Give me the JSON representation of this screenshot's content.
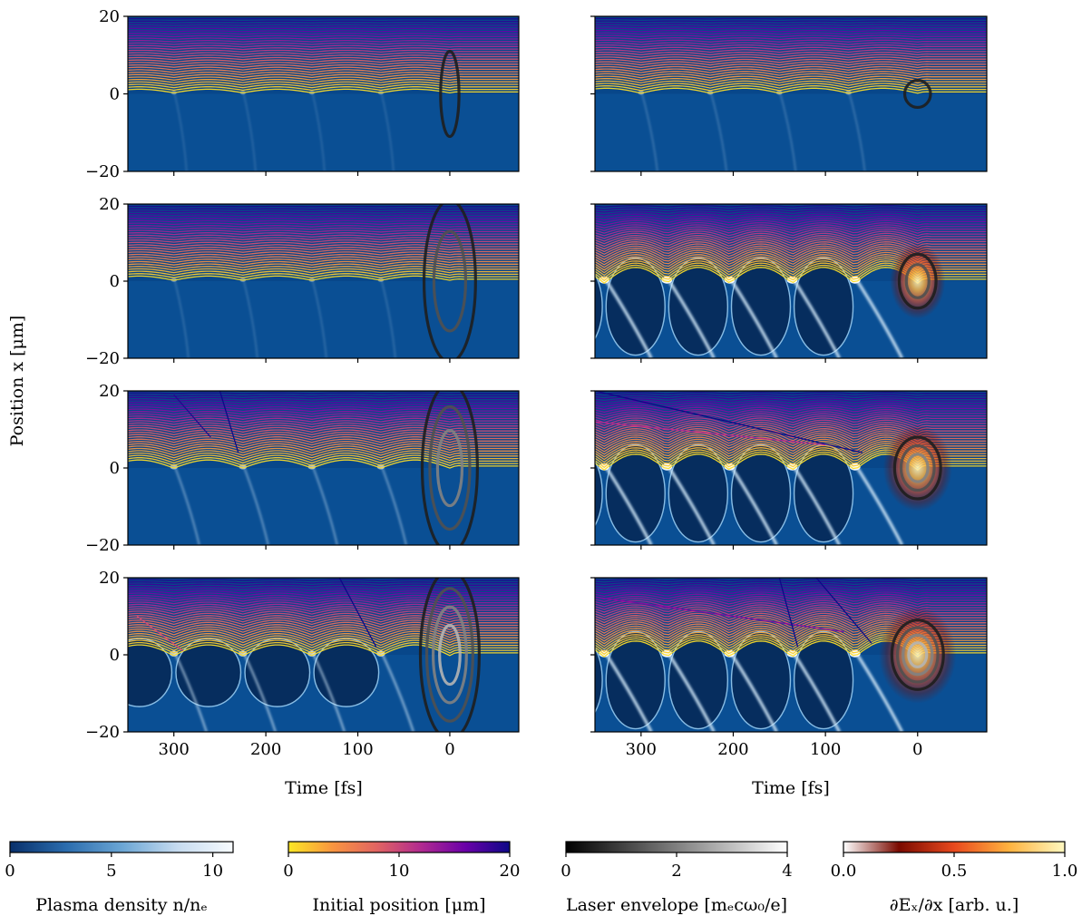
{
  "chart_data": {
    "type": "heatmap",
    "layout": "4 rows x 2 columns of panels with shared axes",
    "ylabel": "Position x [μm]",
    "xlabel": "Time [fs]",
    "xlim": [
      350,
      -75
    ],
    "ylim": [
      -20,
      20
    ],
    "x_ticks": [
      300,
      200,
      100,
      0
    ],
    "y_ticks": [
      20,
      0,
      -20
    ],
    "y_tick_labels": [
      "20",
      "0",
      "−20"
    ],
    "panels": [
      {
        "row": 0,
        "col": 0,
        "bubble_period_fs": 75,
        "bubble_depth": 0.05,
        "laser_amp": 1,
        "laser_semi_fs": 10,
        "laser_semi_um": 11,
        "lines_from_fs": 0,
        "crossing_lines": []
      },
      {
        "row": 0,
        "col": 1,
        "bubble_period_fs": 75,
        "bubble_depth": 0.15,
        "laser_amp": 1,
        "laser_semi_fs": 14,
        "laser_semi_um": 3.5,
        "lines_from_fs": 0,
        "crossing_lines": []
      },
      {
        "row": 1,
        "col": 0,
        "bubble_period_fs": 75,
        "bubble_depth": 0.1,
        "laser_amp": 2,
        "laser_semi_fs": 28,
        "laser_semi_um": 21,
        "lines_from_fs": 0,
        "crossing_lines": []
      },
      {
        "row": 1,
        "col": 1,
        "bubble_period_fs": 68,
        "bubble_depth": 1.0,
        "laser_amp": 2,
        "laser_semi_fs": 20,
        "laser_semi_um": 7,
        "lines_from_fs": 0,
        "crossing_lines": []
      },
      {
        "row": 2,
        "col": 0,
        "bubble_period_fs": 75,
        "bubble_depth": 0.4,
        "laser_amp": 3,
        "laser_semi_fs": 30,
        "laser_semi_um": 22,
        "lines_from_fs": 0,
        "crossing_lines": [
          [
            300,
            19,
            260,
            8
          ],
          [
            250,
            20,
            230,
            4
          ]
        ]
      },
      {
        "row": 2,
        "col": 1,
        "bubble_period_fs": 68,
        "bubble_depth": 1.0,
        "laser_amp": 3,
        "laser_semi_fs": 25,
        "laser_semi_um": 8,
        "lines_from_fs": 0,
        "crossing_lines": [
          [
            350,
            20,
            60,
            4
          ],
          [
            350,
            12,
            100,
            6
          ]
        ]
      },
      {
        "row": 3,
        "col": 0,
        "bubble_period_fs": 75,
        "bubble_depth": 0.6,
        "laser_amp": 4,
        "laser_semi_fs": 32,
        "laser_semi_um": 22,
        "lines_from_fs": 0,
        "crossing_lines": [
          [
            340,
            10,
            290,
            1
          ],
          [
            120,
            20,
            80,
            2
          ]
        ]
      },
      {
        "row": 3,
        "col": 1,
        "bubble_period_fs": 68,
        "bubble_depth": 1.0,
        "laser_amp": 4,
        "laser_semi_fs": 28,
        "laser_semi_um": 9,
        "lines_from_fs": 0,
        "crossing_lines": [
          [
            350,
            15,
            80,
            6
          ],
          [
            150,
            20,
            130,
            2
          ],
          [
            110,
            20,
            50,
            3
          ]
        ]
      }
    ],
    "colorbars": [
      {
        "label": "Plasma density n/nₑ",
        "ticks": [
          "0",
          "5",
          "10"
        ],
        "range": [
          0,
          11
        ],
        "colors": [
          "#08306b",
          "#2b6cad",
          "#6aa5d4",
          "#c6dbef",
          "#f7fbff"
        ]
      },
      {
        "label": "Initial position [μm]",
        "ticks": [
          "0",
          "10",
          "20"
        ],
        "range": [
          0,
          20
        ],
        "colors": [
          "#fde725",
          "#f89540",
          "#e16462",
          "#b12a90",
          "#6a00a8",
          "#0d0887"
        ]
      },
      {
        "label": "Laser envelope [mₑcω₀/e]",
        "ticks": [
          "0",
          "2",
          "4"
        ],
        "range": [
          0,
          4
        ],
        "colors": [
          "#000000",
          "#ffffff"
        ]
      },
      {
        "label": "∂Eₓ/∂x [arb. u.]",
        "ticks": [
          "0.0",
          "0.5",
          "1.0"
        ],
        "range": [
          0,
          1
        ],
        "colors": [
          "#ffffff",
          "#7a0a00",
          "#e8491d",
          "#ffb340",
          "#fff8c0"
        ]
      }
    ]
  }
}
